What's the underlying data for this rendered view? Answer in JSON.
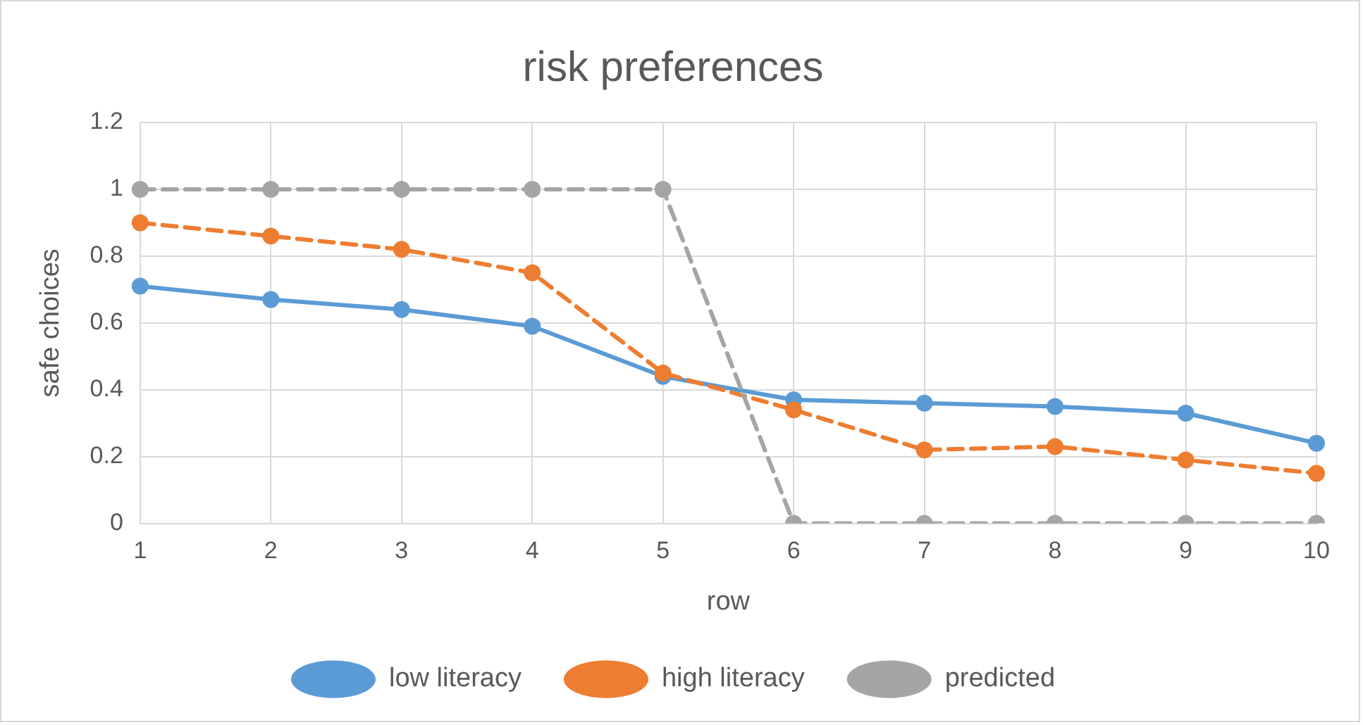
{
  "chart_data": {
    "type": "line",
    "title": "risk preferences",
    "xlabel": "row",
    "ylabel": "safe choices",
    "categories": [
      "1",
      "2",
      "3",
      "4",
      "5",
      "6",
      "7",
      "8",
      "9",
      "10"
    ],
    "series": [
      {
        "name": "low literacy",
        "color": "#5b9bd5",
        "line_style": "solid",
        "values": [
          0.71,
          0.67,
          0.64,
          0.59,
          0.44,
          0.37,
          0.36,
          0.35,
          0.33,
          0.24
        ]
      },
      {
        "name": "high literacy",
        "color": "#ed7d31",
        "line_style": "dashed",
        "values": [
          0.9,
          0.86,
          0.82,
          0.75,
          0.45,
          0.34,
          0.22,
          0.23,
          0.19,
          0.15
        ]
      },
      {
        "name": "predicted",
        "color": "#a5a5a5",
        "line_style": "dashed",
        "values": [
          1,
          1,
          1,
          1,
          1,
          0,
          0,
          0,
          0,
          0
        ]
      }
    ],
    "ylim": [
      0,
      1.2
    ],
    "yticks": [
      0,
      0.2,
      0.4,
      0.6,
      0.8,
      1,
      1.2
    ],
    "grid": true,
    "legend": "bottom",
    "marker": "circle"
  }
}
